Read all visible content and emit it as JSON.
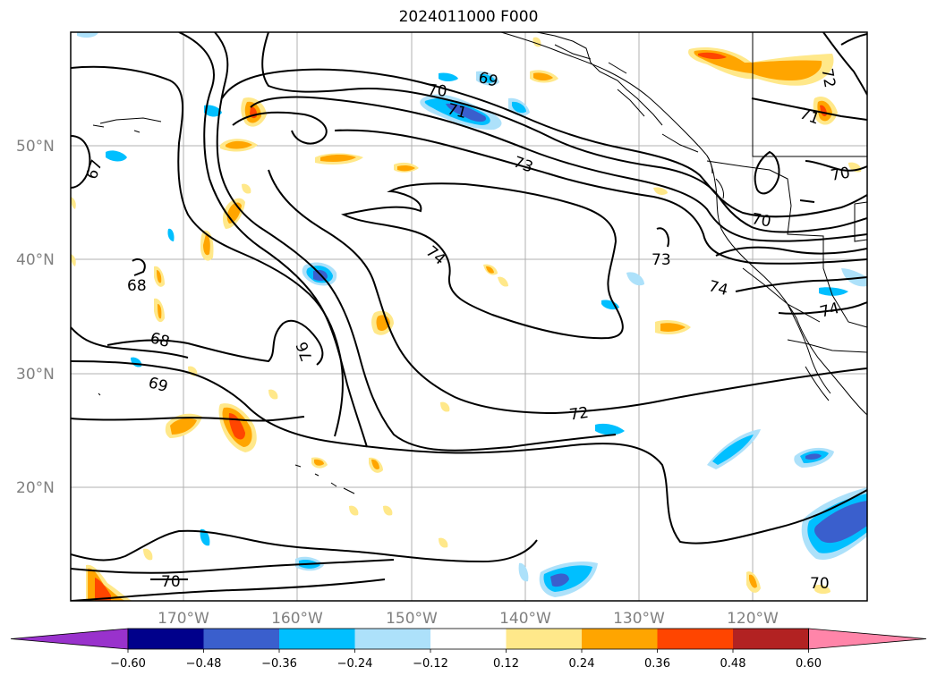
{
  "title": "2024011000 F000",
  "lat_labels": [
    "50°N",
    "40°N",
    "30°N",
    "20°N"
  ],
  "lon_labels": [
    "170°W",
    "160°W",
    "150°W",
    "140°W",
    "130°W",
    "120°W"
  ],
  "contour_labels": [
    "67",
    "68",
    "68",
    "69",
    "69",
    "70",
    "70",
    "70",
    "70",
    "71",
    "71",
    "72",
    "72",
    "73",
    "73",
    "74",
    "74",
    "74",
    "76"
  ],
  "colorbar": {
    "ticks": [
      "−0.60",
      "−0.48",
      "−0.36",
      "−0.24",
      "−0.12",
      "0.12",
      "0.24",
      "0.36",
      "0.48",
      "0.60"
    ],
    "colors": [
      "#9932CC",
      "#00008B",
      "#3A5FCD",
      "#00BFFF",
      "#ADE1FA",
      "#FFFFFF",
      "#FFE88A",
      "#FFA500",
      "#FF4500",
      "#B22222",
      "#FF85A9"
    ]
  }
}
